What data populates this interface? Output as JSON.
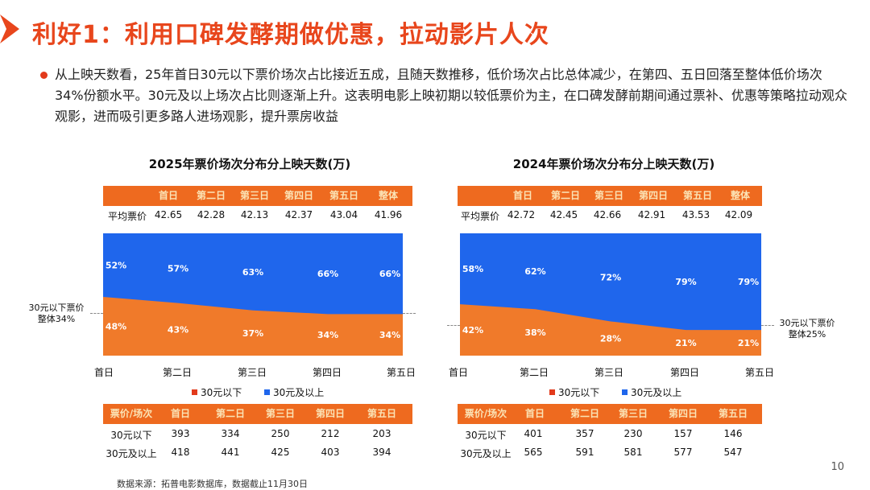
{
  "header": {
    "title": "利好1：利用口碑发酵期做优惠，拉动影片人次"
  },
  "body": {
    "paragraph": "从上映天数看，25年首日30元以下票价场次占比接近五成，且随天数推移，低价场次占比总体减少，在第四、五日回落至整体低价场次34%份额水平。30元及以上场次占比则逐渐上升。这表明电影上映初期以较低票价为主，在口碑发酵前期间通过票补、优惠等策略拉动观众观影，进而吸引更多路人进场观影，提升票房收益"
  },
  "colors": {
    "accent": "#e8461c",
    "orange": "#f07a2a",
    "blue": "#1f66ec",
    "header_bg": "#ee6a1f"
  },
  "left": {
    "title": "2025年票价场次分布分上映天数(万)",
    "top_headers": [
      "首日",
      "第二日",
      "第三日",
      "第四日",
      "第五日",
      "整体"
    ],
    "avg_label": "平均票价",
    "avg_values": [
      "42.65",
      "42.28",
      "42.13",
      "42.37",
      "43.04",
      "41.96"
    ],
    "side_note_1": "30元以下票价",
    "side_note_2": "整体34%",
    "bottom_corner": "票价/场次",
    "bottom_headers": [
      "首日",
      "第二日",
      "第三日",
      "第四日",
      "第五日"
    ],
    "row1_label": "30元以下",
    "row1": [
      "393",
      "334",
      "250",
      "212",
      "203"
    ],
    "row2_label": "30元及以上",
    "row2": [
      "418",
      "441",
      "425",
      "403",
      "394"
    ]
  },
  "right": {
    "title": "2024年票价场次分布分上映天数(万)",
    "top_headers": [
      "首日",
      "第二日",
      "第三日",
      "第四日",
      "第五日",
      "整体"
    ],
    "avg_label": "平均票价",
    "avg_values": [
      "42.72",
      "42.45",
      "42.66",
      "42.91",
      "43.53",
      "42.09"
    ],
    "side_note_1": "30元以下票价",
    "side_note_2": "整体25%",
    "bottom_corner": "票价/场次",
    "bottom_headers": [
      "首日",
      "第二日",
      "第三日",
      "第四日",
      "第五日"
    ],
    "row1_label": "30元以下",
    "row1": [
      "401",
      "357",
      "230",
      "157",
      "146"
    ],
    "row2_label": "30元及以上",
    "row2": [
      "565",
      "591",
      "581",
      "577",
      "547"
    ]
  },
  "chart_data": [
    {
      "type": "area",
      "title": "2025年票价场次分布分上映天数(万)",
      "categories": [
        "首日",
        "第二日",
        "第三日",
        "第四日",
        "第五日"
      ],
      "series": [
        {
          "name": "30元以下",
          "values": [
            48,
            43,
            37,
            34,
            34
          ],
          "labels": [
            "48%",
            "43%",
            "37%",
            "34%",
            "34%"
          ],
          "color": "#f07a2a"
        },
        {
          "name": "30元及以上",
          "values": [
            52,
            57,
            63,
            66,
            66
          ],
          "labels": [
            "52%",
            "57%",
            "63%",
            "66%",
            "66%"
          ],
          "color": "#1f66ec"
        }
      ],
      "reference_line": 34,
      "ylim": [
        0,
        100
      ],
      "legend": "bottom"
    },
    {
      "type": "area",
      "title": "2024年票价场次分布分上映天数(万)",
      "categories": [
        "首日",
        "第二日",
        "第三日",
        "第四日",
        "第五日"
      ],
      "series": [
        {
          "name": "30元以下",
          "values": [
            42,
            38,
            28,
            21,
            21
          ],
          "labels": [
            "42%",
            "38%",
            "28%",
            "21%",
            "21%"
          ],
          "color": "#f07a2a"
        },
        {
          "name": "30元及以上",
          "values": [
            58,
            62,
            72,
            79,
            79
          ],
          "labels": [
            "58%",
            "62%",
            "72%",
            "79%",
            "79%"
          ],
          "color": "#1f66ec"
        }
      ],
      "reference_line": 25,
      "ylim": [
        0,
        100
      ],
      "legend": "bottom"
    }
  ],
  "footer": {
    "source": "数据来源：拓普电影数据库，数据截止11月30日",
    "page_number": "10"
  }
}
